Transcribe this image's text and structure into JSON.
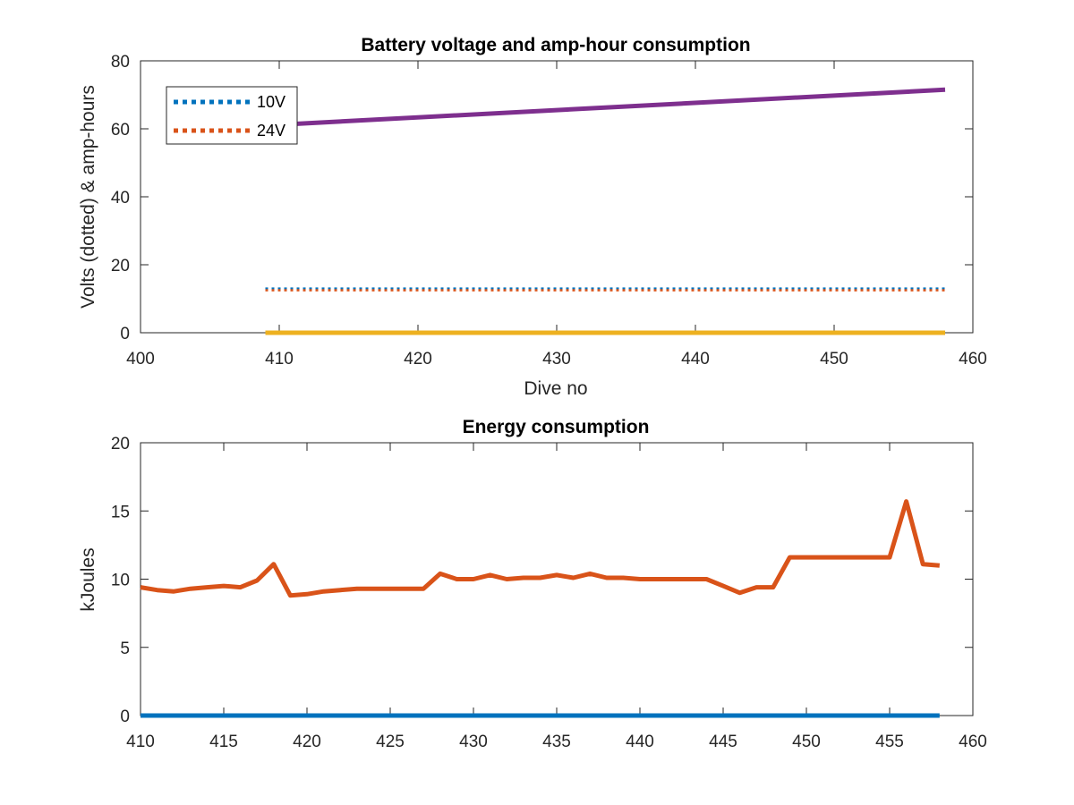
{
  "chart_data": [
    {
      "type": "line",
      "title": "Battery voltage and amp-hour consumption",
      "xlabel": "Dive no",
      "ylabel": "Volts (dotted) & amp-hours",
      "xlim": [
        400,
        460
      ],
      "ylim": [
        0,
        80
      ],
      "xticks": [
        400,
        410,
        420,
        430,
        440,
        450,
        460
      ],
      "yticks": [
        0,
        20,
        40,
        60,
        80
      ],
      "grid": false,
      "legend_position": "top-left",
      "series": [
        {
          "name": "10V",
          "style": "dotted",
          "color": "#0072BD",
          "x": [
            409,
            458
          ],
          "y": [
            13,
            13
          ]
        },
        {
          "name": "24V",
          "style": "dotted",
          "color": "#D95319",
          "x": [
            409,
            458
          ],
          "y": [
            12.5,
            12.5
          ]
        },
        {
          "style": "solid",
          "color": "#7E2F8E",
          "x": [
            409,
            458
          ],
          "y": [
            61,
            71.5
          ]
        },
        {
          "style": "solid",
          "color": "#EDB120",
          "x": [
            409,
            458
          ],
          "y": [
            0,
            0
          ]
        }
      ]
    },
    {
      "type": "line",
      "title": "Energy consumption",
      "xlabel": "",
      "ylabel": "kJoules",
      "xlim": [
        410,
        460
      ],
      "ylim": [
        0,
        20
      ],
      "xticks": [
        410,
        415,
        420,
        425,
        430,
        435,
        440,
        445,
        450,
        455,
        460
      ],
      "yticks": [
        0,
        5,
        10,
        15,
        20
      ],
      "grid": false,
      "series": [
        {
          "style": "solid",
          "color": "#D95319",
          "x": [
            410,
            411,
            412,
            413,
            414,
            415,
            416,
            417,
            418,
            419,
            420,
            421,
            422,
            423,
            424,
            425,
            426,
            427,
            428,
            429,
            430,
            431,
            432,
            433,
            434,
            435,
            436,
            437,
            438,
            439,
            440,
            441,
            442,
            443,
            444,
            445,
            446,
            447,
            448,
            449,
            450,
            451,
            452,
            453,
            454,
            455,
            456,
            457,
            458
          ],
          "y": [
            9.4,
            9.2,
            9.1,
            9.3,
            9.4,
            9.5,
            9.4,
            9.9,
            11.1,
            8.8,
            8.9,
            9.1,
            9.2,
            9.3,
            9.3,
            9.3,
            9.3,
            9.3,
            10.4,
            10.0,
            10.0,
            10.3,
            10.0,
            10.1,
            10.1,
            10.3,
            10.1,
            10.4,
            10.1,
            10.1,
            10.0,
            10.0,
            10.0,
            10.0,
            10.0,
            9.5,
            9.0,
            9.4,
            9.4,
            11.6,
            11.6,
            11.6,
            11.6,
            11.6,
            11.6,
            11.6,
            15.7,
            11.1,
            11.0
          ]
        },
        {
          "style": "solid",
          "color": "#0072BD",
          "x": [
            410,
            458
          ],
          "y": [
            0,
            0
          ]
        }
      ]
    }
  ]
}
